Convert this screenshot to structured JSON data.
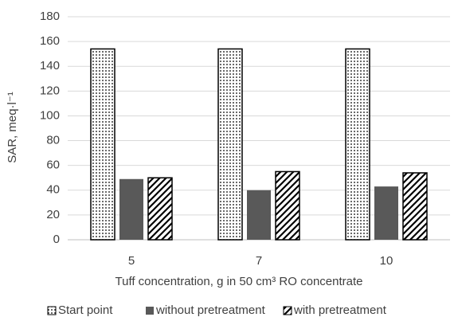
{
  "chart_data": {
    "type": "bar",
    "y_label": "SAR, meq·l⁻¹",
    "x_label": "Tuff concentration, g in 50 cm³ RO concentrate",
    "categories": [
      "5",
      "7",
      "10"
    ],
    "series": [
      {
        "name": "Start point",
        "color": "#000000",
        "pattern": "dots",
        "values": [
          154,
          154,
          154
        ]
      },
      {
        "name": "without pretreatment",
        "color": "#595959",
        "pattern": "solid",
        "values": [
          49,
          40,
          43
        ]
      },
      {
        "name": "with pretreatment",
        "color": "#000000",
        "pattern": "hatch",
        "values": [
          50,
          55,
          54
        ]
      }
    ],
    "ylim": [
      0,
      180
    ],
    "yticks": [
      0,
      20,
      40,
      60,
      80,
      100,
      120,
      140,
      160,
      180
    ],
    "grid": true,
    "legend": "bottom"
  }
}
